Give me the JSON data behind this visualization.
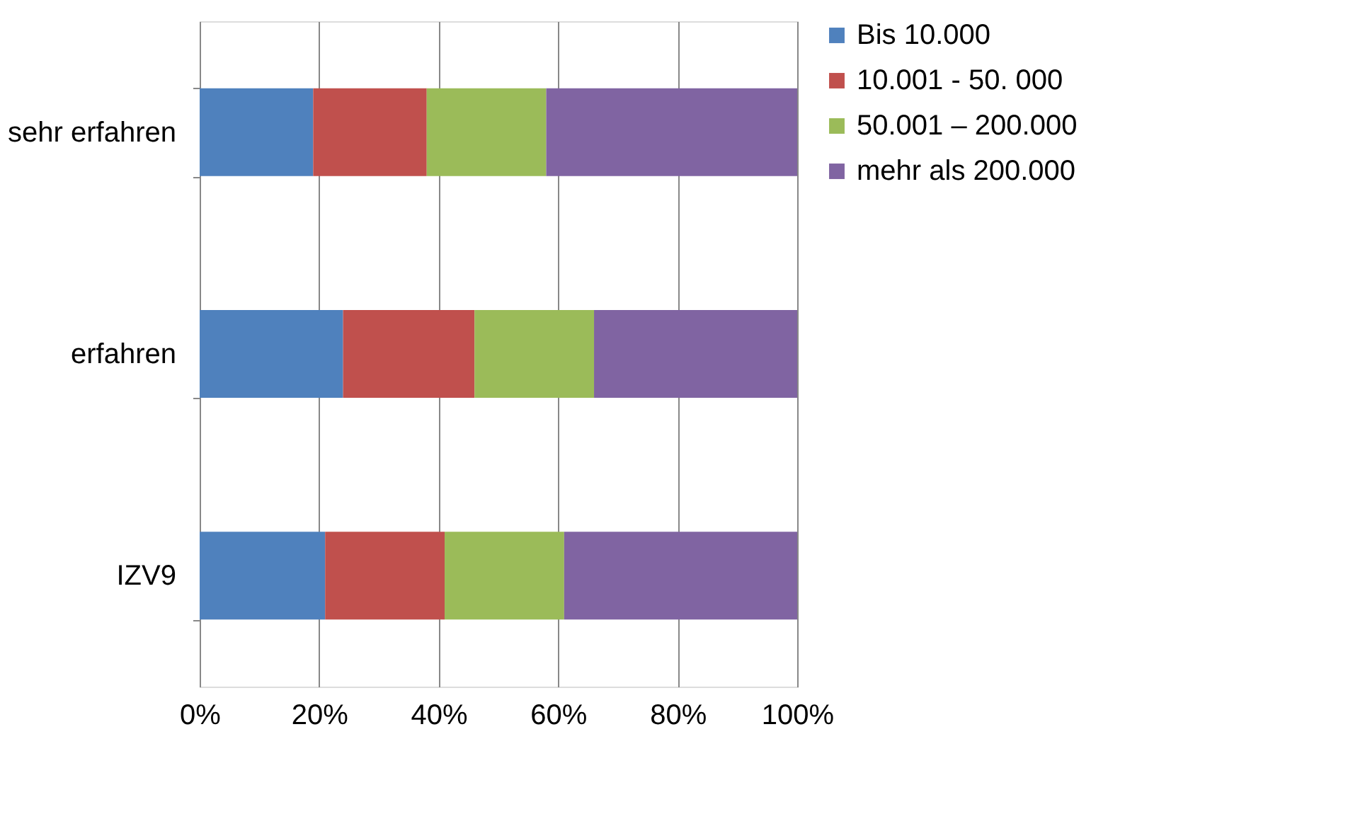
{
  "chart_data": {
    "type": "bar",
    "orientation": "horizontal",
    "stacked": true,
    "categories": [
      "sehr erfahren",
      "erfahren",
      "IZV9"
    ],
    "series": [
      {
        "name": "Bis 10.000",
        "color": "#4f81bd",
        "values": [
          19,
          24,
          21
        ]
      },
      {
        "name": "10.001 - 50. 000",
        "color": "#c0504d",
        "values": [
          19,
          22,
          20
        ]
      },
      {
        "name": "50.001 – 200.000",
        "color": "#9bbb59",
        "values": [
          20,
          20,
          20
        ]
      },
      {
        "name": "mehr als 200.000",
        "color": "#8064a2",
        "values": [
          42,
          34,
          39
        ]
      }
    ],
    "xlim": [
      0,
      100
    ],
    "xticks": [
      {
        "value": 0,
        "label": "0%"
      },
      {
        "value": 20,
        "label": "20%"
      },
      {
        "value": 40,
        "label": "40%"
      },
      {
        "value": 60,
        "label": "60%"
      },
      {
        "value": 80,
        "label": "80%"
      },
      {
        "value": 100,
        "label": "100%"
      }
    ],
    "grid": "x",
    "legend": "right"
  }
}
